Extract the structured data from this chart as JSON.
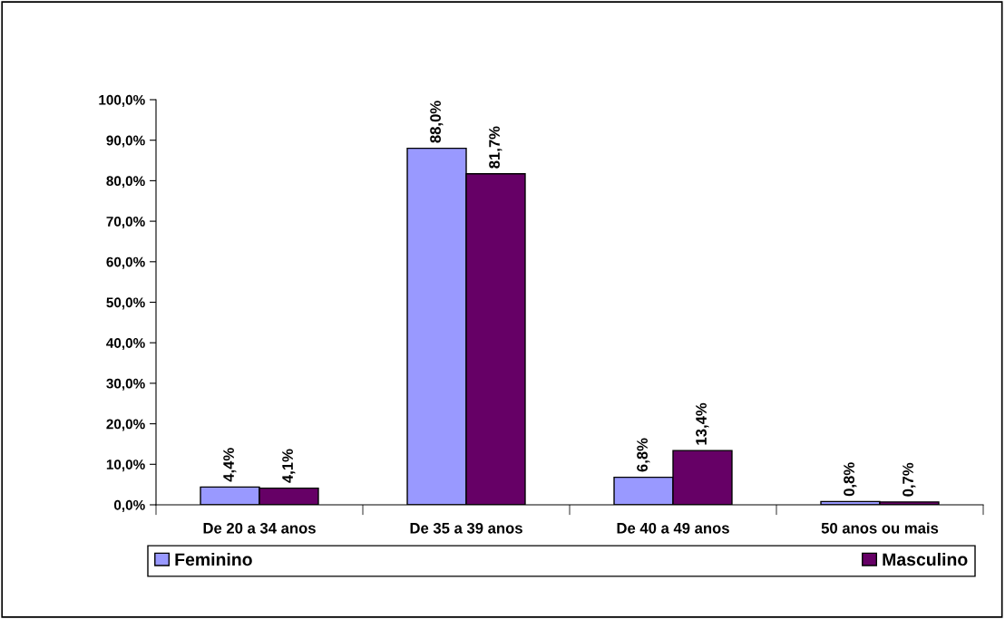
{
  "chart_data": {
    "type": "bar",
    "categories": [
      "De 20 a 34 anos",
      "De 35 a 39 anos",
      "De 40 a 49 anos",
      "50 anos ou mais"
    ],
    "series": [
      {
        "name": "Feminino",
        "color": "#9999ff",
        "values": [
          4.4,
          88.0,
          6.8,
          0.8
        ],
        "value_labels": [
          "4,4%",
          "88,0%",
          "6,8%",
          "0,8%"
        ]
      },
      {
        "name": "Masculino",
        "color": "#660066",
        "values": [
          4.1,
          81.7,
          13.4,
          0.7
        ],
        "value_labels": [
          "4,1%",
          "81,7%",
          "13,4%",
          "0,7%"
        ]
      }
    ],
    "ylim": [
      0,
      100
    ],
    "yticks": [
      {
        "value": 0,
        "label": "0,0%"
      },
      {
        "value": 10,
        "label": "10,0%"
      },
      {
        "value": 20,
        "label": "20,0%"
      },
      {
        "value": 30,
        "label": "30,0%"
      },
      {
        "value": 40,
        "label": "40,0%"
      },
      {
        "value": 50,
        "label": "50,0%"
      },
      {
        "value": 60,
        "label": "60,0%"
      },
      {
        "value": 70,
        "label": "70,0%"
      },
      {
        "value": 80,
        "label": "80,0%"
      },
      {
        "value": 90,
        "label": "90,0%"
      },
      {
        "value": 100,
        "label": "100,0%"
      }
    ],
    "grid": false,
    "legend": "bottom"
  }
}
